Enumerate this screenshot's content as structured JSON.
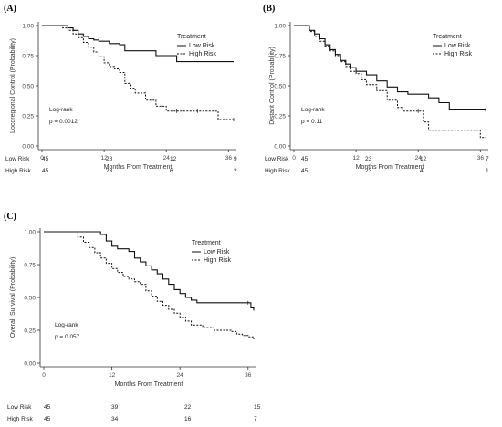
{
  "chart_data": [
    {
      "type": "line",
      "panel_label": "(A)",
      "xlabel": "Months From Treatment",
      "ylabel": "Locoregional Control (Probability)",
      "xticks": [
        0,
        12,
        24,
        36
      ],
      "yticks": [
        "0.00",
        "0.25",
        "0.50",
        "0.75",
        "1.00"
      ],
      "xlim": [
        0,
        37
      ],
      "ylim": [
        0,
        1
      ],
      "legend_title": "Treatment",
      "annotation": [
        "Log-rank",
        "p = 0.0012"
      ],
      "series": [
        {
          "name": "Low Risk",
          "style": "solid",
          "x": [
            0,
            4,
            5,
            6,
            7,
            8,
            9,
            10,
            11,
            12,
            13,
            15,
            16,
            22,
            26,
            37
          ],
          "y": [
            1.0,
            1.0,
            0.98,
            0.96,
            0.93,
            0.91,
            0.89,
            0.88,
            0.87,
            0.87,
            0.85,
            0.84,
            0.79,
            0.75,
            0.7,
            0.7
          ]
        },
        {
          "name": "High Risk",
          "style": "dashed",
          "x": [
            0,
            3,
            4,
            5,
            6,
            7,
            8,
            9,
            10,
            11,
            12,
            13,
            14,
            15,
            16,
            17,
            18,
            20,
            22,
            24,
            26,
            28,
            30,
            32,
            34,
            36,
            37
          ],
          "y": [
            1.0,
            1.0,
            0.98,
            0.96,
            0.93,
            0.9,
            0.86,
            0.82,
            0.78,
            0.74,
            0.69,
            0.66,
            0.64,
            0.61,
            0.52,
            0.48,
            0.44,
            0.38,
            0.33,
            0.29,
            0.29,
            0.29,
            0.29,
            0.29,
            0.22,
            0.22,
            0.22
          ]
        }
      ],
      "risk_table": {
        "rows": [
          {
            "label": "Low Risk",
            "values": [
              "45",
              "28",
              "12",
              "9"
            ]
          },
          {
            "label": "High Risk",
            "values": [
              "45",
              "23",
              "6",
              "2"
            ]
          }
        ]
      }
    },
    {
      "type": "line",
      "panel_label": "(B)",
      "xlabel": "Months From Treatment",
      "ylabel": "Distant Control (Probability)",
      "xticks": [
        0,
        12,
        24,
        36
      ],
      "yticks": [
        "0.00",
        "0.25",
        "0.50",
        "0.75",
        "1.00"
      ],
      "xlim": [
        0,
        37
      ],
      "ylim": [
        0,
        1
      ],
      "legend_title": "Treatment",
      "annotation": [
        "Log-rank",
        "p = 0.11"
      ],
      "series": [
        {
          "name": "Low Risk",
          "style": "solid",
          "x": [
            0,
            2,
            3,
            4,
            5,
            6,
            7,
            8,
            9,
            10,
            11,
            12,
            14,
            16,
            18,
            20,
            22,
            24,
            26,
            28,
            30,
            32,
            37
          ],
          "y": [
            1.0,
            1.0,
            0.96,
            0.93,
            0.89,
            0.84,
            0.8,
            0.76,
            0.71,
            0.68,
            0.65,
            0.62,
            0.59,
            0.54,
            0.49,
            0.45,
            0.43,
            0.43,
            0.4,
            0.36,
            0.3,
            0.3,
            0.3
          ]
        },
        {
          "name": "High Risk",
          "style": "dashed",
          "x": [
            0,
            2,
            3,
            4,
            5,
            6,
            7,
            8,
            9,
            10,
            11,
            12,
            13,
            14,
            16,
            18,
            20,
            21,
            24,
            25,
            26,
            30,
            36,
            37
          ],
          "y": [
            1.0,
            1.0,
            0.95,
            0.91,
            0.87,
            0.83,
            0.79,
            0.75,
            0.7,
            0.66,
            0.62,
            0.6,
            0.55,
            0.51,
            0.46,
            0.38,
            0.32,
            0.29,
            0.29,
            0.2,
            0.13,
            0.13,
            0.07,
            0.07
          ]
        }
      ],
      "risk_table": {
        "rows": [
          {
            "label": "Low Risk",
            "values": [
              "45",
              "23",
              "12",
              "7"
            ]
          },
          {
            "label": "High Risk",
            "values": [
              "45",
              "23",
              "4",
              "1"
            ]
          }
        ]
      }
    },
    {
      "type": "line",
      "panel_label": "(C)",
      "xlabel": "Months From Treatment",
      "ylabel": "Overall Survival (Probability)",
      "xticks": [
        0,
        12,
        24,
        36
      ],
      "yticks": [
        "0.00",
        "0.25",
        "0.50",
        "0.75",
        "1.00"
      ],
      "xlim": [
        0,
        37
      ],
      "ylim": [
        0,
        1
      ],
      "legend_title": "Treatment",
      "annotation": [
        "Log-rank",
        "p = 0.057"
      ],
      "series": [
        {
          "name": "Low Risk",
          "style": "solid",
          "x": [
            0,
            9,
            10,
            11,
            12,
            13,
            15,
            16,
            17,
            18,
            19,
            20,
            21,
            22,
            23,
            24,
            25,
            26,
            27,
            28,
            36,
            36.5,
            37
          ],
          "y": [
            1.0,
            1.0,
            0.98,
            0.93,
            0.89,
            0.87,
            0.85,
            0.8,
            0.77,
            0.74,
            0.71,
            0.68,
            0.64,
            0.6,
            0.56,
            0.53,
            0.5,
            0.48,
            0.46,
            0.46,
            0.46,
            0.42,
            0.4
          ]
        },
        {
          "name": "High Risk",
          "style": "dashed",
          "x": [
            0,
            5,
            6,
            7,
            8,
            9,
            10,
            11,
            12,
            13,
            14,
            15,
            16,
            17,
            18,
            19,
            20,
            21,
            22,
            23,
            24,
            25,
            26,
            28,
            30,
            32,
            33,
            34,
            35,
            36,
            37
          ],
          "y": [
            1.0,
            1.0,
            0.96,
            0.92,
            0.88,
            0.84,
            0.8,
            0.76,
            0.72,
            0.69,
            0.66,
            0.64,
            0.62,
            0.6,
            0.55,
            0.51,
            0.47,
            0.44,
            0.41,
            0.38,
            0.35,
            0.32,
            0.29,
            0.27,
            0.25,
            0.25,
            0.24,
            0.22,
            0.21,
            0.2,
            0.18
          ]
        }
      ],
      "risk_table": {
        "rows": [
          {
            "label": "Low Risk",
            "values": [
              "45",
              "39",
              "22",
              "15"
            ]
          },
          {
            "label": "High Risk",
            "values": [
              "45",
              "34",
              "16",
              "7"
            ]
          }
        ]
      }
    }
  ]
}
